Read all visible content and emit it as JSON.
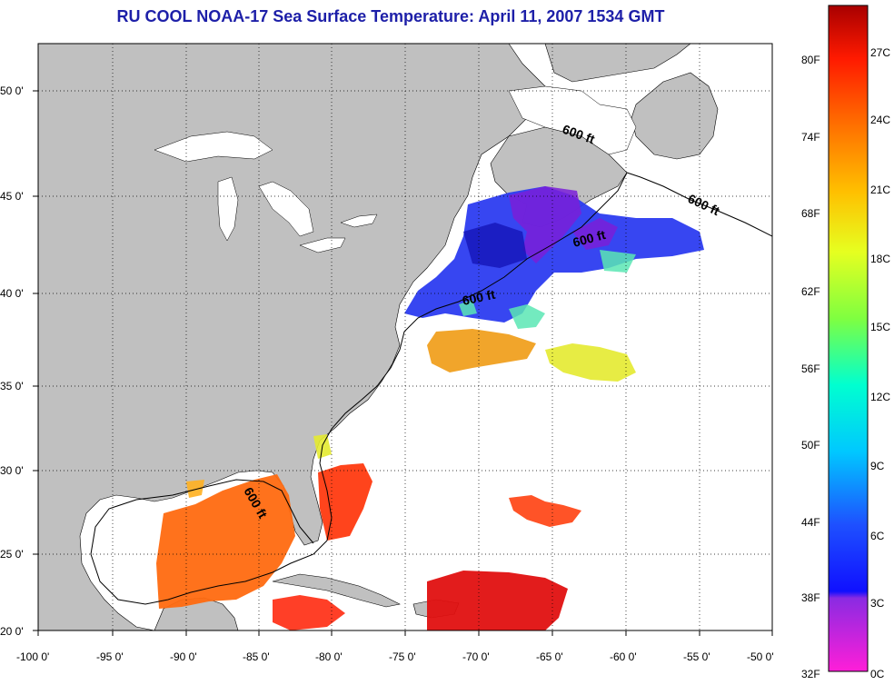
{
  "title": "RU COOL  NOAA-17  Sea Surface Temperature:  April 11, 2007 1534 GMT",
  "map": {
    "lon_ticks": [
      "-100 0'",
      "-95 0'",
      "-90 0'",
      "-85 0'",
      "-80 0'",
      "-75 0'",
      "-70 0'",
      "-65 0'",
      "-60 0'",
      "-55 0'",
      "-50 0'"
    ],
    "lat_ticks": [
      "20 0'",
      "25 0'",
      "30 0'",
      "35 0'",
      "40 0'",
      "45 0'",
      "50 0'"
    ],
    "contour_labels": [
      "600 ft",
      "600 ft",
      "600 ft",
      "600 ft",
      "600 ft"
    ],
    "land_color": "#c0c0c0",
    "ocean_color": "#ffffff"
  },
  "colorbar": {
    "fahrenheit": [
      "80F",
      "74F",
      "68F",
      "62F",
      "56F",
      "50F",
      "44F",
      "38F",
      "32F"
    ],
    "celsius": [
      "27C",
      "24C",
      "21C",
      "18C",
      "15C",
      "12C",
      "9C",
      "6C",
      "3C",
      "0C"
    ]
  }
}
